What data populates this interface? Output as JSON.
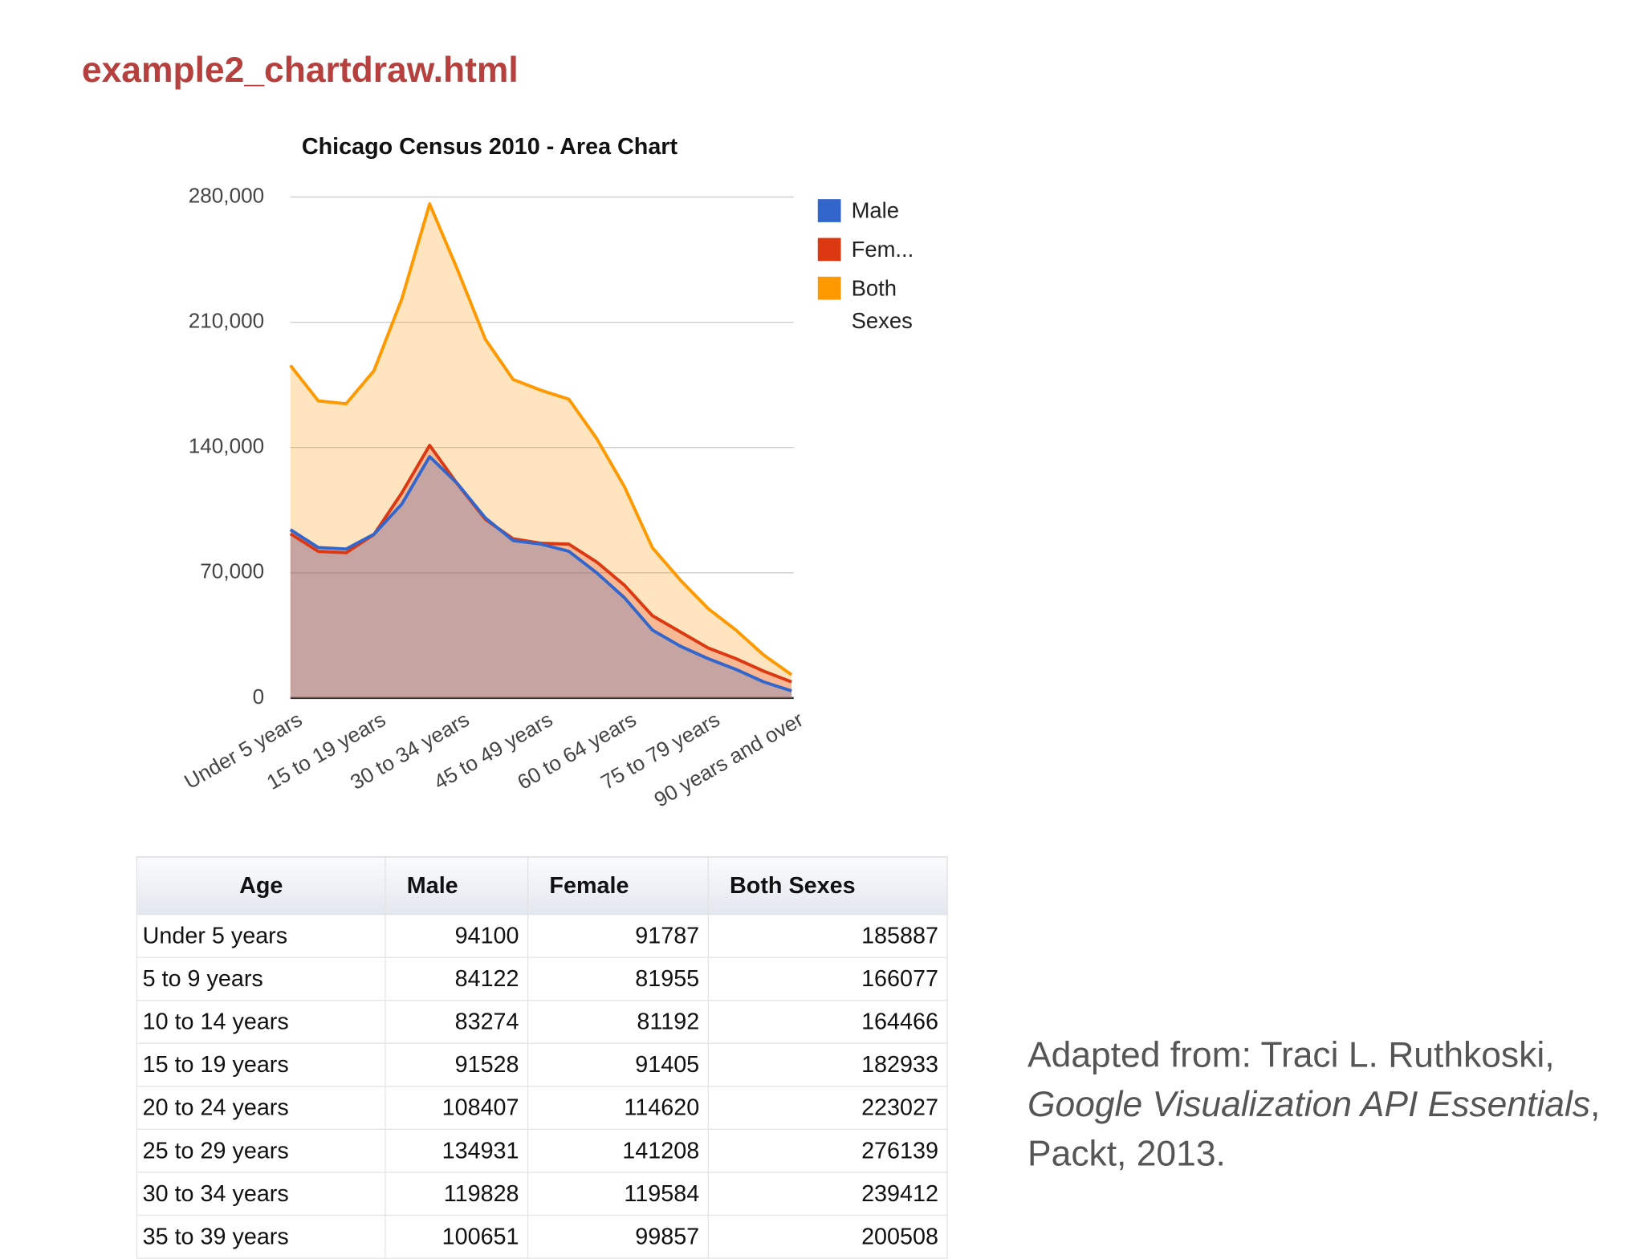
{
  "header": {
    "title": "example2_chartdraw.html"
  },
  "chart_data": {
    "type": "area",
    "title": "Chicago Census 2010 - Area Chart",
    "categories": [
      "Under 5 years",
      null,
      null,
      "15 to 19 years",
      null,
      null,
      "30 to 34 years",
      null,
      null,
      "45 to 49 years",
      null,
      null,
      "60 to 64 years",
      null,
      null,
      "75 to 79 years",
      null,
      null,
      "90 years and over"
    ],
    "series": [
      {
        "name": "Male",
        "color": "#3366cc",
        "values": [
          94100,
          84122,
          83274,
          91528,
          108407,
          134931,
          119828,
          100651,
          88000,
          86000,
          82000,
          70000,
          56000,
          38000,
          29000,
          22000,
          16000,
          9000,
          4000
        ]
      },
      {
        "name": "Fem...",
        "color": "#dc3912",
        "values": [
          91787,
          81955,
          81192,
          91405,
          114620,
          141208,
          119584,
          99857,
          89000,
          86500,
          86000,
          76000,
          63000,
          46000,
          37000,
          28000,
          22000,
          15000,
          9000
        ]
      },
      {
        "name": "Both Sexes",
        "color": "#ff9900",
        "values": [
          185887,
          166077,
          164466,
          182933,
          223027,
          276139,
          239412,
          200508,
          178000,
          172000,
          167000,
          145000,
          118000,
          84000,
          66000,
          50000,
          38000,
          24000,
          13000
        ]
      }
    ],
    "ylim": [
      0,
      280000
    ],
    "yticks": [
      0,
      {
        "value": 70000,
        "label": "70,000"
      },
      {
        "value": 140000,
        "label": "140,000"
      },
      {
        "value": 210000,
        "label": "210,000"
      },
      {
        "value": 280000,
        "label": "280,000"
      }
    ],
    "grid": true,
    "legend": "right"
  },
  "table": {
    "columns": [
      "Age",
      "Male",
      "Female",
      "Both Sexes"
    ],
    "rows": [
      [
        "Under 5 years",
        94100,
        91787,
        185887
      ],
      [
        "5 to 9 years",
        84122,
        81955,
        166077
      ],
      [
        "10 to 14 years",
        83274,
        81192,
        164466
      ],
      [
        "15 to 19 years",
        91528,
        91405,
        182933
      ],
      [
        "20 to 24 years",
        108407,
        114620,
        223027
      ],
      [
        "25 to 29 years",
        134931,
        141208,
        276139
      ],
      [
        "30 to 34 years",
        119828,
        119584,
        239412
      ],
      [
        "35 to 39 years",
        100651,
        99857,
        200508
      ]
    ]
  },
  "citation": {
    "line1": "Adapted from: Traci L. Ruthkoski,",
    "book": "Google Visualization API Essentials",
    "after_book": ",",
    "line3": "Packt, 2013."
  }
}
